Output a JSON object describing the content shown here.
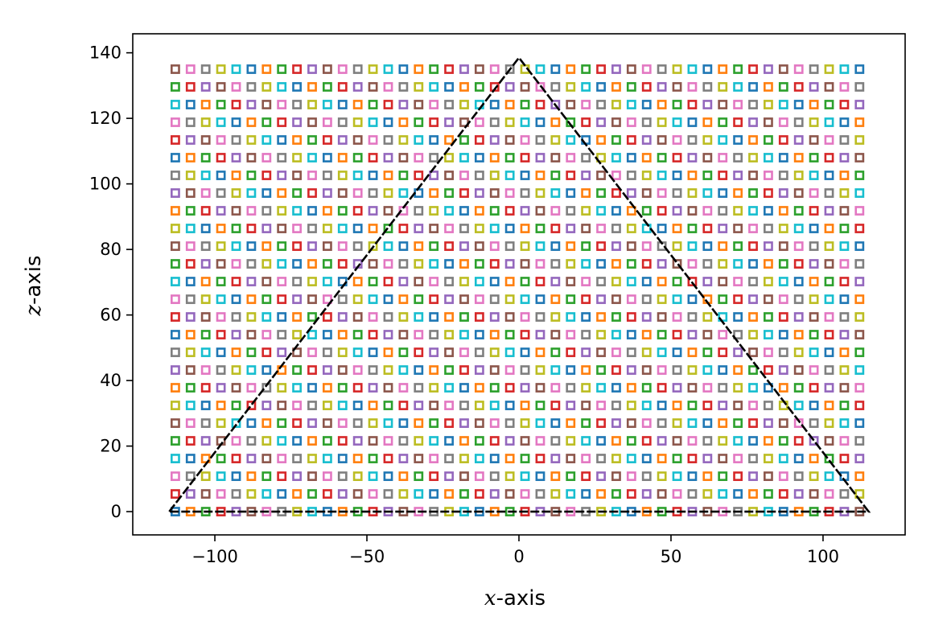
{
  "chart_data": {
    "type": "scatter",
    "xlabel_var": "x",
    "xlabel_suffix": "-axis",
    "ylabel_var": "z",
    "ylabel_suffix": "-axis",
    "xlim": [
      -127,
      127
    ],
    "ylim": [
      -7.1,
      145.8
    ],
    "xticks": [
      -100,
      -50,
      0,
      50,
      100
    ],
    "yticks": [
      0,
      20,
      40,
      60,
      80,
      100,
      120,
      140
    ],
    "grid": false,
    "legend": "none",
    "marker": "hollow-square",
    "palette": [
      "#1f77b4",
      "#ff7f0e",
      "#2ca02c",
      "#d62728",
      "#9467bd",
      "#8c564b",
      "#e377c2",
      "#7f7f7f",
      "#bcbd22",
      "#17becf"
    ],
    "grid_points": {
      "x_start": -113,
      "x_step": 5,
      "x_count": 46,
      "z_start": 0,
      "z_step": 5.4,
      "z_count": 26
    },
    "triangle_outline": {
      "x": [
        -115,
        0,
        115,
        -115
      ],
      "z": [
        0,
        138.5,
        0,
        0
      ],
      "color": "#000000",
      "style": "dashed"
    }
  }
}
